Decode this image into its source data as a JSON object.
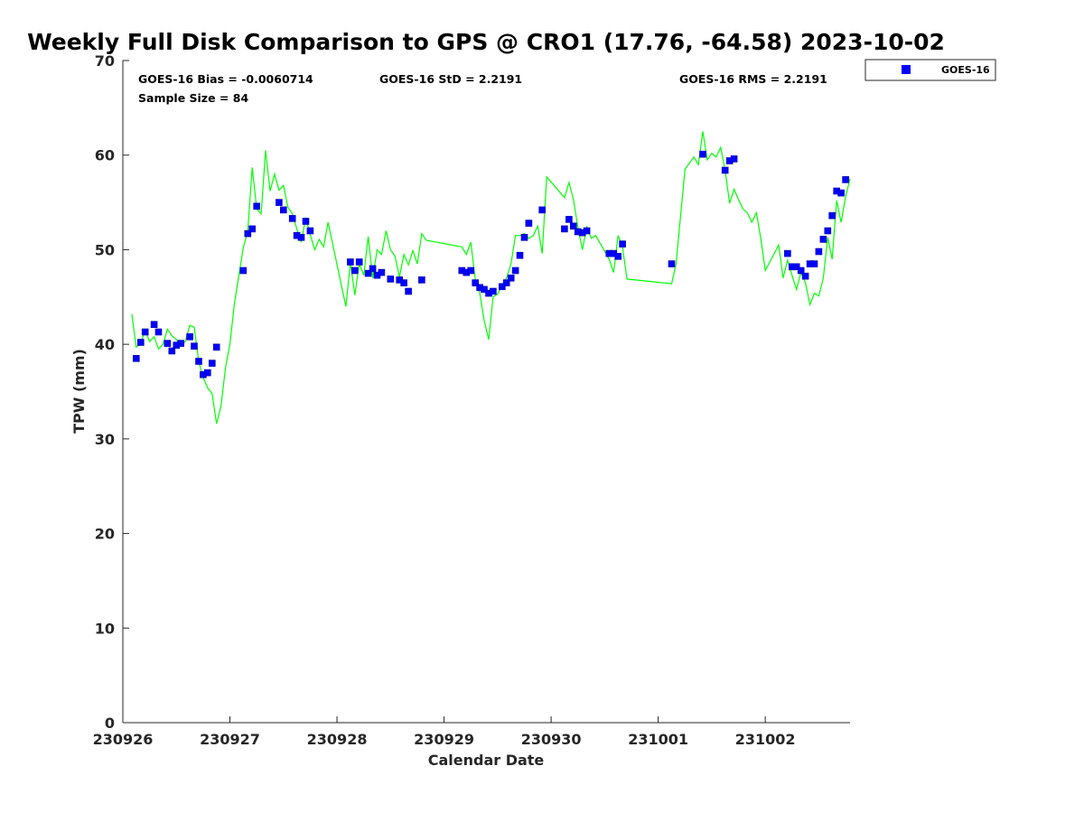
{
  "chart_data": {
    "type": "scatter",
    "title": "Weekly Full Disk Comparison to GPS @ CRO1 (17.76, -64.58) 2023-10-02",
    "xlabel": "Calendar Date",
    "ylabel": "TPW (mm)",
    "xlim": [
      "2023-09-26 00:00",
      "2023-10-02 19:00"
    ],
    "ylim": [
      0,
      70
    ],
    "xticks": [
      "230926",
      "230927",
      "230928",
      "230929",
      "230930",
      "231001",
      "231002"
    ],
    "yticks": [
      "0",
      "10",
      "20",
      "30",
      "40",
      "50",
      "60",
      "70"
    ],
    "grid": false,
    "legend_position": "top-right outside",
    "stats": {
      "bias": "GOES-16 Bias = -0.0060714",
      "std": "GOES-16 StD = 2.2191",
      "rms": "GOES-16 RMS = 2.2191",
      "sample": "Sample Size = 84"
    },
    "legend": [
      "GOES-16"
    ],
    "colors": {
      "goes": "#0000ff",
      "gps_line": "#00ff00"
    },
    "series": [
      {
        "name": "GOES-16",
        "marker": "square",
        "points": [
          [
            "2023-09-26 03:00",
            38.5
          ],
          [
            "2023-09-26 04:00",
            40.2
          ],
          [
            "2023-09-26 05:00",
            41.3
          ],
          [
            "2023-09-26 07:00",
            42.1
          ],
          [
            "2023-09-26 08:00",
            41.3
          ],
          [
            "2023-09-26 10:00",
            40.1
          ],
          [
            "2023-09-26 11:00",
            39.3
          ],
          [
            "2023-09-26 12:00",
            39.9
          ],
          [
            "2023-09-26 13:00",
            40.1
          ],
          [
            "2023-09-26 15:00",
            40.8
          ],
          [
            "2023-09-26 16:00",
            39.8
          ],
          [
            "2023-09-26 17:00",
            38.2
          ],
          [
            "2023-09-26 18:00",
            36.8
          ],
          [
            "2023-09-26 19:00",
            37.0
          ],
          [
            "2023-09-26 20:00",
            38.0
          ],
          [
            "2023-09-26 21:00",
            39.7
          ],
          [
            "2023-09-27 03:00",
            47.8
          ],
          [
            "2023-09-27 04:00",
            51.7
          ],
          [
            "2023-09-27 05:00",
            52.2
          ],
          [
            "2023-09-27 06:00",
            54.6
          ],
          [
            "2023-09-27 11:00",
            55.0
          ],
          [
            "2023-09-27 12:00",
            54.2
          ],
          [
            "2023-09-27 14:00",
            53.3
          ],
          [
            "2023-09-27 15:00",
            51.5
          ],
          [
            "2023-09-27 16:00",
            51.3
          ],
          [
            "2023-09-27 17:00",
            53.0
          ],
          [
            "2023-09-27 18:00",
            52.0
          ],
          [
            "2023-09-28 03:00",
            48.7
          ],
          [
            "2023-09-28 04:00",
            47.8
          ],
          [
            "2023-09-28 05:00",
            48.7
          ],
          [
            "2023-09-28 07:00",
            47.5
          ],
          [
            "2023-09-28 08:00",
            48.0
          ],
          [
            "2023-09-28 09:00",
            47.3
          ],
          [
            "2023-09-28 10:00",
            47.6
          ],
          [
            "2023-09-28 12:00",
            46.9
          ],
          [
            "2023-09-28 14:00",
            46.8
          ],
          [
            "2023-09-28 15:00",
            46.5
          ],
          [
            "2023-09-28 16:00",
            45.6
          ],
          [
            "2023-09-28 19:00",
            46.8
          ],
          [
            "2023-09-29 04:00",
            47.8
          ],
          [
            "2023-09-29 05:00",
            47.6
          ],
          [
            "2023-09-29 06:00",
            47.8
          ],
          [
            "2023-09-29 07:00",
            46.5
          ],
          [
            "2023-09-29 08:00",
            46.0
          ],
          [
            "2023-09-29 09:00",
            45.8
          ],
          [
            "2023-09-29 10:00",
            45.4
          ],
          [
            "2023-09-29 11:00",
            45.6
          ],
          [
            "2023-09-29 13:00",
            46.1
          ],
          [
            "2023-09-29 14:00",
            46.5
          ],
          [
            "2023-09-29 15:00",
            47.0
          ],
          [
            "2023-09-29 16:00",
            47.8
          ],
          [
            "2023-09-29 17:00",
            49.4
          ],
          [
            "2023-09-29 18:00",
            51.3
          ],
          [
            "2023-09-29 19:00",
            52.8
          ],
          [
            "2023-09-29 22:00",
            54.2
          ],
          [
            "2023-09-30 03:00",
            52.2
          ],
          [
            "2023-09-30 04:00",
            53.2
          ],
          [
            "2023-09-30 05:00",
            52.5
          ],
          [
            "2023-09-30 06:00",
            51.9
          ],
          [
            "2023-09-30 07:00",
            51.8
          ],
          [
            "2023-09-30 08:00",
            52.0
          ],
          [
            "2023-09-30 13:00",
            49.6
          ],
          [
            "2023-09-30 14:00",
            49.6
          ],
          [
            "2023-09-30 15:00",
            49.3
          ],
          [
            "2023-09-30 16:00",
            50.6
          ],
          [
            "2023-10-01 03:00",
            48.5
          ],
          [
            "2023-10-01 10:00",
            60.1
          ],
          [
            "2023-10-01 15:00",
            58.4
          ],
          [
            "2023-10-01 16:00",
            59.4
          ],
          [
            "2023-10-01 17:00",
            59.6
          ],
          [
            "2023-10-02 05:00",
            49.6
          ],
          [
            "2023-10-02 06:00",
            48.2
          ],
          [
            "2023-10-02 07:00",
            48.2
          ],
          [
            "2023-10-02 08:00",
            47.8
          ],
          [
            "2023-10-02 09:00",
            47.2
          ],
          [
            "2023-10-02 10:00",
            48.5
          ],
          [
            "2023-10-02 11:00",
            48.5
          ],
          [
            "2023-10-02 12:00",
            49.8
          ],
          [
            "2023-10-02 13:00",
            51.1
          ],
          [
            "2023-10-02 14:00",
            52.0
          ],
          [
            "2023-10-02 15:00",
            53.6
          ],
          [
            "2023-10-02 16:00",
            56.2
          ],
          [
            "2023-10-02 17:00",
            56.0
          ],
          [
            "2023-10-02 18:00",
            57.4
          ]
        ]
      },
      {
        "marker": "line",
        "points": [
          [
            "2023-09-26 02:00",
            43.2
          ],
          [
            "2023-09-26 03:00",
            39.7
          ],
          [
            "2023-09-26 04:00",
            40.1
          ],
          [
            "2023-09-26 05:00",
            41.5
          ],
          [
            "2023-09-26 06:00",
            40.3
          ],
          [
            "2023-09-26 07:00",
            40.8
          ],
          [
            "2023-09-26 08:00",
            39.5
          ],
          [
            "2023-09-26 09:00",
            40.0
          ],
          [
            "2023-09-26 10:00",
            41.6
          ],
          [
            "2023-09-26 11:00",
            40.9
          ],
          [
            "2023-09-26 12:00",
            40.5
          ],
          [
            "2023-09-26 13:00",
            39.8
          ],
          [
            "2023-09-26 14:00",
            40.3
          ],
          [
            "2023-09-26 15:00",
            42.0
          ],
          [
            "2023-09-26 16:00",
            41.8
          ],
          [
            "2023-09-26 17:00",
            38.2
          ],
          [
            "2023-09-26 18:00",
            36.5
          ],
          [
            "2023-09-26 19:00",
            35.4
          ],
          [
            "2023-09-26 20:00",
            34.8
          ],
          [
            "2023-09-26 21:00",
            31.6
          ],
          [
            "2023-09-26 22:00",
            33.5
          ],
          [
            "2023-09-26 23:00",
            37.5
          ],
          [
            "2023-09-27 00:00",
            40.0
          ],
          [
            "2023-09-27 01:00",
            44.3
          ],
          [
            "2023-09-27 03:00",
            50.2
          ],
          [
            "2023-09-27 04:00",
            52.0
          ],
          [
            "2023-09-27 05:00",
            58.7
          ],
          [
            "2023-09-27 06:00",
            54.3
          ],
          [
            "2023-09-27 07:00",
            53.8
          ],
          [
            "2023-09-27 08:00",
            60.5
          ],
          [
            "2023-09-27 09:00",
            56.2
          ],
          [
            "2023-09-27 10:00",
            58.0
          ],
          [
            "2023-09-27 11:00",
            56.3
          ],
          [
            "2023-09-27 12:00",
            56.8
          ],
          [
            "2023-09-27 13:00",
            54.5
          ],
          [
            "2023-09-27 14:00",
            53.8
          ],
          [
            "2023-09-27 15:00",
            52.2
          ],
          [
            "2023-09-27 16:00",
            50.8
          ],
          [
            "2023-09-27 17:00",
            53.4
          ],
          [
            "2023-09-27 18:00",
            51.6
          ],
          [
            "2023-09-27 19:00",
            50.0
          ],
          [
            "2023-09-27 20:00",
            51.1
          ],
          [
            "2023-09-27 21:00",
            50.3
          ],
          [
            "2023-09-27 22:00",
            52.9
          ],
          [
            "2023-09-28 02:00",
            44.0
          ],
          [
            "2023-09-28 03:00",
            48.7
          ],
          [
            "2023-09-28 04:00",
            45.2
          ],
          [
            "2023-09-28 05:00",
            48.5
          ],
          [
            "2023-09-28 06:00",
            47.3
          ],
          [
            "2023-09-28 07:00",
            51.4
          ],
          [
            "2023-09-28 08:00",
            47.0
          ],
          [
            "2023-09-28 09:00",
            50.0
          ],
          [
            "2023-09-28 10:00",
            49.5
          ],
          [
            "2023-09-28 11:00",
            52.0
          ],
          [
            "2023-09-28 12:00",
            50.0
          ],
          [
            "2023-09-28 13:00",
            49.3
          ],
          [
            "2023-09-28 14:00",
            47.1
          ],
          [
            "2023-09-28 15:00",
            49.5
          ],
          [
            "2023-09-28 16:00",
            48.4
          ],
          [
            "2023-09-28 17:00",
            49.9
          ],
          [
            "2023-09-28 18:00",
            48.5
          ],
          [
            "2023-09-28 19:00",
            51.7
          ],
          [
            "2023-09-28 20:00",
            51.0
          ],
          [
            "2023-09-29 04:00",
            50.3
          ],
          [
            "2023-09-29 05:00",
            49.5
          ],
          [
            "2023-09-29 06:00",
            50.8
          ],
          [
            "2023-09-29 07:00",
            46.8
          ],
          [
            "2023-09-29 08:00",
            45.4
          ],
          [
            "2023-09-29 09:00",
            42.5
          ],
          [
            "2023-09-29 10:00",
            40.5
          ],
          [
            "2023-09-29 11:00",
            45.0
          ],
          [
            "2023-09-29 12:00",
            45.3
          ],
          [
            "2023-09-29 13:00",
            46.2
          ],
          [
            "2023-09-29 14:00",
            47.0
          ],
          [
            "2023-09-29 15:00",
            48.5
          ],
          [
            "2023-09-29 16:00",
            51.5
          ],
          [
            "2023-09-29 17:00",
            51.5
          ],
          [
            "2023-09-29 18:00",
            51.7
          ],
          [
            "2023-09-29 19:00",
            51.2
          ],
          [
            "2023-09-29 20:00",
            51.5
          ],
          [
            "2023-09-29 21:00",
            52.5
          ],
          [
            "2023-09-29 22:00",
            49.6
          ],
          [
            "2023-09-29 23:00",
            57.7
          ],
          [
            "2023-09-30 03:00",
            55.5
          ],
          [
            "2023-09-30 04:00",
            57.1
          ],
          [
            "2023-09-30 05:00",
            55.3
          ],
          [
            "2023-09-30 06:00",
            52.4
          ],
          [
            "2023-09-30 07:00",
            50.0
          ],
          [
            "2023-09-30 08:00",
            52.4
          ],
          [
            "2023-09-30 09:00",
            51.2
          ],
          [
            "2023-09-30 10:00",
            51.5
          ],
          [
            "2023-09-30 13:00",
            49.0
          ],
          [
            "2023-09-30 14:00",
            47.6
          ],
          [
            "2023-09-30 15:00",
            51.5
          ],
          [
            "2023-09-30 16:00",
            50.3
          ],
          [
            "2023-09-30 17:00",
            46.9
          ],
          [
            "2023-10-01 03:00",
            46.4
          ],
          [
            "2023-10-01 04:00",
            48.5
          ],
          [
            "2023-10-01 06:00",
            58.5
          ],
          [
            "2023-10-01 08:00",
            59.8
          ],
          [
            "2023-10-01 09:00",
            59.0
          ],
          [
            "2023-10-01 10:00",
            62.5
          ],
          [
            "2023-10-01 11:00",
            59.5
          ],
          [
            "2023-10-01 12:00",
            60.2
          ],
          [
            "2023-10-01 13:00",
            59.8
          ],
          [
            "2023-10-01 14:00",
            60.8
          ],
          [
            "2023-10-01 15:00",
            58.4
          ],
          [
            "2023-10-01 16:00",
            54.9
          ],
          [
            "2023-10-01 17:00",
            56.4
          ],
          [
            "2023-10-01 18:00",
            55.3
          ],
          [
            "2023-10-01 19:00",
            54.3
          ],
          [
            "2023-10-01 20:00",
            53.9
          ],
          [
            "2023-10-01 21:00",
            52.9
          ],
          [
            "2023-10-01 22:00",
            53.9
          ],
          [
            "2023-10-01 23:00",
            51.2
          ],
          [
            "2023-10-02 00:00",
            47.8
          ],
          [
            "2023-10-02 03:00",
            50.5
          ],
          [
            "2023-10-02 04:00",
            47.0
          ],
          [
            "2023-10-02 05:00",
            48.9
          ],
          [
            "2023-10-02 06:00",
            47.3
          ],
          [
            "2023-10-02 07:00",
            45.8
          ],
          [
            "2023-10-02 08:00",
            47.6
          ],
          [
            "2023-10-02 09:00",
            46.5
          ],
          [
            "2023-10-02 10:00",
            44.2
          ],
          [
            "2023-10-02 11:00",
            45.4
          ],
          [
            "2023-10-02 12:00",
            45.1
          ],
          [
            "2023-10-02 13:00",
            47.0
          ],
          [
            "2023-10-02 14:00",
            51.3
          ],
          [
            "2023-10-02 15:00",
            49.0
          ],
          [
            "2023-10-02 16:00",
            55.2
          ],
          [
            "2023-10-02 17:00",
            52.9
          ],
          [
            "2023-10-02 18:00",
            55.6
          ],
          [
            "2023-10-02 19:00",
            57.5
          ]
        ]
      }
    ]
  }
}
